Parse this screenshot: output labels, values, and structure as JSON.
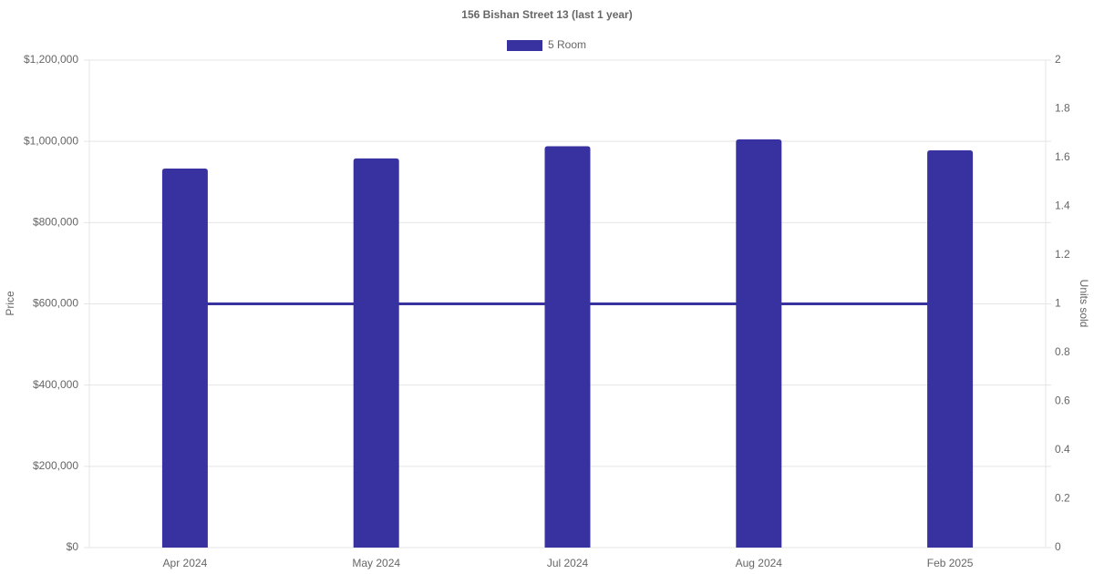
{
  "chart_data": {
    "type": "bar_line",
    "title": "156 Bishan Street 13 (last 1 year)",
    "y_label": "Price",
    "y2_label": "Units sold",
    "categories": [
      "Apr 2024",
      "May 2024",
      "Jul 2024",
      "Aug 2024",
      "Feb 2025"
    ],
    "series": [
      {
        "name": "5 Room",
        "type": "bar",
        "color": "#3732a0",
        "values": [
          933000,
          958000,
          988000,
          1005000,
          978000
        ]
      },
      {
        "type": "line",
        "axis": "y2",
        "color": "#3732a0",
        "values": [
          1,
          1,
          1,
          1,
          1
        ]
      }
    ],
    "ylim": [
      0,
      1200000
    ],
    "yticks": [
      {
        "value": 0,
        "label": "$0"
      },
      {
        "value": 200000,
        "label": "$200,000"
      },
      {
        "value": 400000,
        "label": "$400,000"
      },
      {
        "value": 600000,
        "label": "$600,000"
      },
      {
        "value": 800000,
        "label": "$800,000"
      },
      {
        "value": 1000000,
        "label": "$1,000,000"
      },
      {
        "value": 1200000,
        "label": "$1,200,000"
      }
    ],
    "y2lim": [
      0,
      2
    ],
    "y2ticks": [
      0,
      0.2,
      0.4,
      0.6,
      0.8,
      1,
      1.2,
      1.4,
      1.6,
      1.8,
      2
    ],
    "grid": true,
    "legend": "top"
  }
}
